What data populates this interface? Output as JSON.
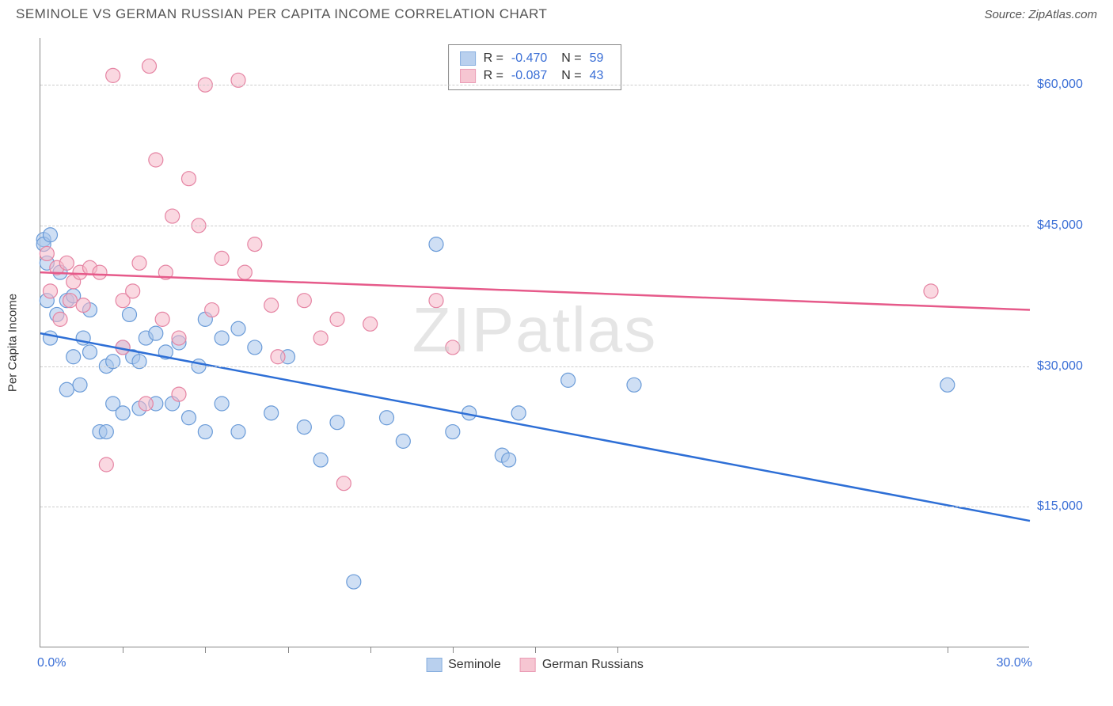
{
  "title": "SEMINOLE VS GERMAN RUSSIAN PER CAPITA INCOME CORRELATION CHART",
  "source": "Source: ZipAtlas.com",
  "watermark_bold": "ZIP",
  "watermark_thin": "atlas",
  "chart": {
    "type": "scatter",
    "xlim": [
      0,
      30
    ],
    "ylim": [
      0,
      65000
    ],
    "x_min_label": "0.0%",
    "x_max_label": "30.0%",
    "x_tick_positions": [
      2.5,
      5.0,
      7.5,
      10.0,
      12.5,
      15.0,
      17.5,
      27.5
    ],
    "y_ticks": [
      15000,
      30000,
      45000,
      60000
    ],
    "y_tick_labels": [
      "$15,000",
      "$30,000",
      "$45,000",
      "$60,000"
    ],
    "y_axis_title": "Per Capita Income",
    "grid_color": "#cccccc",
    "background_color": "#ffffff",
    "axis_color": "#888888",
    "tick_label_color": "#3b6fd6",
    "marker_radius": 9,
    "series": [
      {
        "name": "Seminole",
        "fill": "#a8c5eb",
        "stroke": "#6a9bd8",
        "fill_opacity": 0.55,
        "R": "-0.470",
        "N": "59",
        "trend": {
          "x1": 0,
          "y1": 33500,
          "x2": 30,
          "y2": 13500,
          "color": "#2e6fd6",
          "width": 2.5
        },
        "points": [
          [
            0.1,
            43500
          ],
          [
            0.1,
            43000
          ],
          [
            0.2,
            41000
          ],
          [
            0.3,
            44000
          ],
          [
            0.2,
            37000
          ],
          [
            0.3,
            33000
          ],
          [
            0.5,
            35500
          ],
          [
            0.6,
            40000
          ],
          [
            0.8,
            37000
          ],
          [
            0.8,
            27500
          ],
          [
            1.0,
            37500
          ],
          [
            1.0,
            31000
          ],
          [
            1.2,
            28000
          ],
          [
            1.3,
            33000
          ],
          [
            1.5,
            36000
          ],
          [
            1.5,
            31500
          ],
          [
            1.8,
            23000
          ],
          [
            2.0,
            23000
          ],
          [
            2.0,
            30000
          ],
          [
            2.2,
            30500
          ],
          [
            2.2,
            26000
          ],
          [
            2.5,
            32000
          ],
          [
            2.5,
            25000
          ],
          [
            2.7,
            35500
          ],
          [
            2.8,
            31000
          ],
          [
            3.0,
            25500
          ],
          [
            3.0,
            30500
          ],
          [
            3.2,
            33000
          ],
          [
            3.5,
            33500
          ],
          [
            3.5,
            26000
          ],
          [
            3.8,
            31500
          ],
          [
            4.0,
            26000
          ],
          [
            4.2,
            32500
          ],
          [
            4.5,
            24500
          ],
          [
            4.8,
            30000
          ],
          [
            5.0,
            23000
          ],
          [
            5.0,
            35000
          ],
          [
            5.5,
            33000
          ],
          [
            5.5,
            26000
          ],
          [
            6.0,
            34000
          ],
          [
            6.0,
            23000
          ],
          [
            6.5,
            32000
          ],
          [
            7.0,
            25000
          ],
          [
            7.5,
            31000
          ],
          [
            8.0,
            23500
          ],
          [
            8.5,
            20000
          ],
          [
            9.0,
            24000
          ],
          [
            9.5,
            7000
          ],
          [
            10.5,
            24500
          ],
          [
            11.0,
            22000
          ],
          [
            12.0,
            43000
          ],
          [
            12.5,
            23000
          ],
          [
            13.0,
            25000
          ],
          [
            14.0,
            20500
          ],
          [
            14.2,
            20000
          ],
          [
            14.5,
            25000
          ],
          [
            16.0,
            28500
          ],
          [
            18.0,
            28000
          ],
          [
            27.5,
            28000
          ]
        ]
      },
      {
        "name": "German Russians",
        "fill": "#f5b8c8",
        "stroke": "#e584a3",
        "fill_opacity": 0.55,
        "R": "-0.087",
        "N": "43",
        "trend": {
          "x1": 0,
          "y1": 40000,
          "x2": 30,
          "y2": 36000,
          "color": "#e65a8a",
          "width": 2.5
        },
        "points": [
          [
            0.2,
            42000
          ],
          [
            0.3,
            38000
          ],
          [
            0.5,
            40500
          ],
          [
            0.6,
            35000
          ],
          [
            0.8,
            41000
          ],
          [
            0.9,
            37000
          ],
          [
            1.0,
            39000
          ],
          [
            1.2,
            40000
          ],
          [
            1.3,
            36500
          ],
          [
            1.5,
            40500
          ],
          [
            1.8,
            40000
          ],
          [
            2.0,
            19500
          ],
          [
            2.2,
            61000
          ],
          [
            2.5,
            37000
          ],
          [
            2.5,
            32000
          ],
          [
            2.8,
            38000
          ],
          [
            3.0,
            41000
          ],
          [
            3.2,
            26000
          ],
          [
            3.3,
            62000
          ],
          [
            3.5,
            52000
          ],
          [
            3.7,
            35000
          ],
          [
            3.8,
            40000
          ],
          [
            4.0,
            46000
          ],
          [
            4.2,
            33000
          ],
          [
            4.2,
            27000
          ],
          [
            4.5,
            50000
          ],
          [
            4.8,
            45000
          ],
          [
            5.0,
            60000
          ],
          [
            5.2,
            36000
          ],
          [
            5.5,
            41500
          ],
          [
            6.0,
            60500
          ],
          [
            6.2,
            40000
          ],
          [
            6.5,
            43000
          ],
          [
            7.0,
            36500
          ],
          [
            7.2,
            31000
          ],
          [
            8.0,
            37000
          ],
          [
            8.5,
            33000
          ],
          [
            9.0,
            35000
          ],
          [
            9.2,
            17500
          ],
          [
            10.0,
            34500
          ],
          [
            12.0,
            37000
          ],
          [
            12.5,
            32000
          ],
          [
            27.0,
            38000
          ]
        ]
      }
    ],
    "legend": {
      "label1": "Seminole",
      "label2": "German Russians"
    },
    "stats_labels": {
      "R": "R =",
      "N": "N ="
    }
  }
}
